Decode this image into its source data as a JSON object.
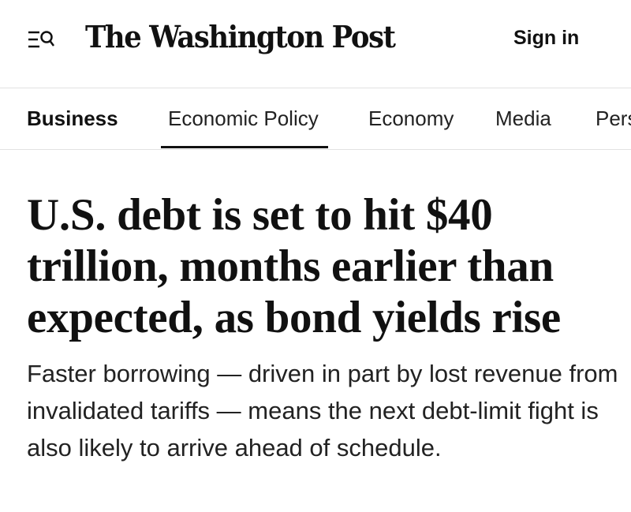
{
  "header": {
    "menu_icon": "menu-search-icon",
    "logo_text": "The Washington Post",
    "sign_in_label": "Sign in"
  },
  "nav": {
    "section_label": "Business",
    "active_tab": "Economic Policy",
    "tabs": [
      "Economic Policy",
      "Economy",
      "Media",
      "Pers"
    ]
  },
  "article": {
    "headline": "U.S. debt is set to hit $40 trillion, months earlier than expected, as bond yields rise",
    "dek": "Faster borrowing — driven in part by lost revenue from invalidated tariffs — means the next debt-limit fight is also likely to arrive ahead of schedule."
  }
}
